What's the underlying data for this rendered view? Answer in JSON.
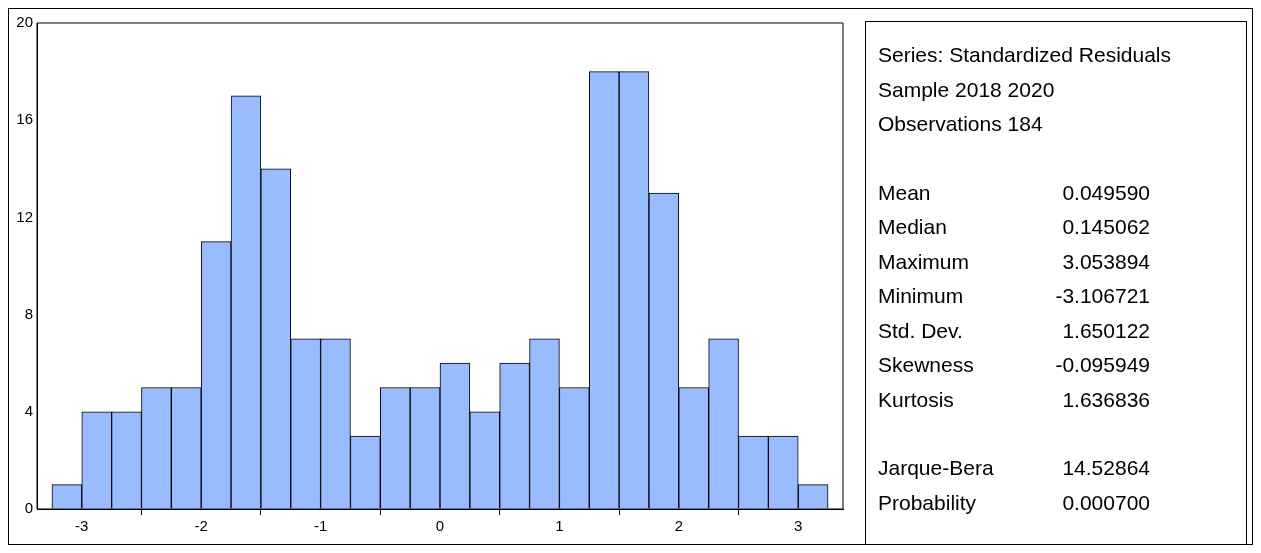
{
  "chart_data": {
    "type": "histogram",
    "bins": [
      -3.25,
      -3,
      -2.75,
      -2.5,
      -2.25,
      -2,
      -1.75,
      -1.5,
      -1.25,
      -1,
      -0.75,
      -0.5,
      -0.25,
      0,
      0.25,
      0.5,
      0.75,
      1,
      1.25,
      1.5,
      1.75,
      2,
      2.25,
      2.5,
      2.75,
      3,
      3.25
    ],
    "values": [
      1,
      4,
      4,
      5,
      5,
      11,
      17,
      14,
      7,
      7,
      3,
      5,
      5,
      6,
      4,
      6,
      7,
      5,
      18,
      18,
      13,
      5,
      7,
      3,
      3,
      1
    ],
    "color": "#99bbff",
    "xlim": [
      -3.375,
      3.375
    ],
    "xticks": [
      -3,
      -2,
      -1,
      0,
      1,
      2,
      3
    ],
    "ylim": [
      0,
      20
    ],
    "yticks": [
      0,
      4,
      8,
      12,
      16,
      20
    ],
    "grid": false,
    "legend": false,
    "annotations": [
      "Series: Standardized Residuals",
      "Sample 2018 2020",
      "Observations 184",
      "Mean\t0.049590",
      "Median\t0.145062",
      "Maximum\t3.053894",
      "Minimum\t-3.106721",
      "Std. Dev.\t1.650122",
      "Skewness\t-0.095949",
      "Kurtosis\t1.636836",
      "Jarque-Bera\t14.52864",
      "Probability\t0.000700"
    ]
  }
}
